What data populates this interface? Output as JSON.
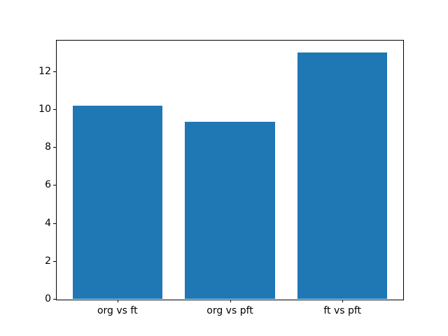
{
  "chart_data": {
    "type": "bar",
    "title": "",
    "xlabel": "",
    "ylabel": "",
    "categories": [
      "org vs ft",
      "org vs pft",
      "ft vs pft"
    ],
    "values": [
      10.2,
      9.35,
      13.0
    ],
    "yticks": [
      0,
      2,
      4,
      6,
      8,
      10,
      12
    ],
    "ylim": [
      0,
      13.65
    ],
    "xlim": [
      -0.54,
      2.54
    ],
    "bar_width": 0.8,
    "bar_color": "#1f77b4",
    "grid": false,
    "legend": false
  },
  "colors": {
    "background": "#ffffff",
    "spine": "#000000",
    "tick_label": "#000000"
  }
}
